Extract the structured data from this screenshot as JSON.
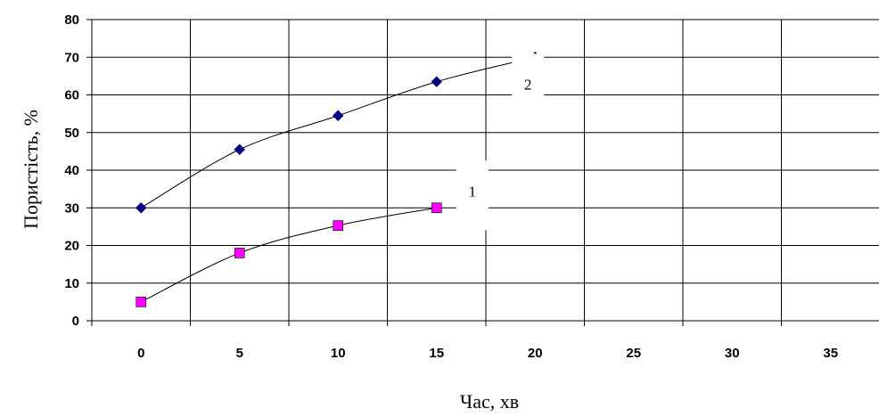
{
  "chart_data": {
    "type": "line",
    "xlabel": "Час, хв",
    "ylabel": "Пористість, %",
    "categories": [
      "0",
      "5",
      "10",
      "15",
      "20",
      "25",
      "30",
      "35"
    ],
    "yticks": [
      "0",
      "10",
      "20",
      "30",
      "40",
      "50",
      "60",
      "70",
      "80"
    ],
    "ylim": [
      0,
      80
    ],
    "grid": true,
    "series": [
      {
        "name": "2",
        "marker": "diamond",
        "color": "#000080",
        "x": [
          0,
          5,
          10,
          15,
          20
        ],
        "values": [
          30,
          45.5,
          54.5,
          63.5,
          70
        ]
      },
      {
        "name": "1",
        "marker": "square",
        "color": "#ff00ff",
        "x": [
          0,
          5,
          10,
          15
        ],
        "values": [
          5,
          18,
          25.3,
          30
        ]
      }
    ]
  }
}
